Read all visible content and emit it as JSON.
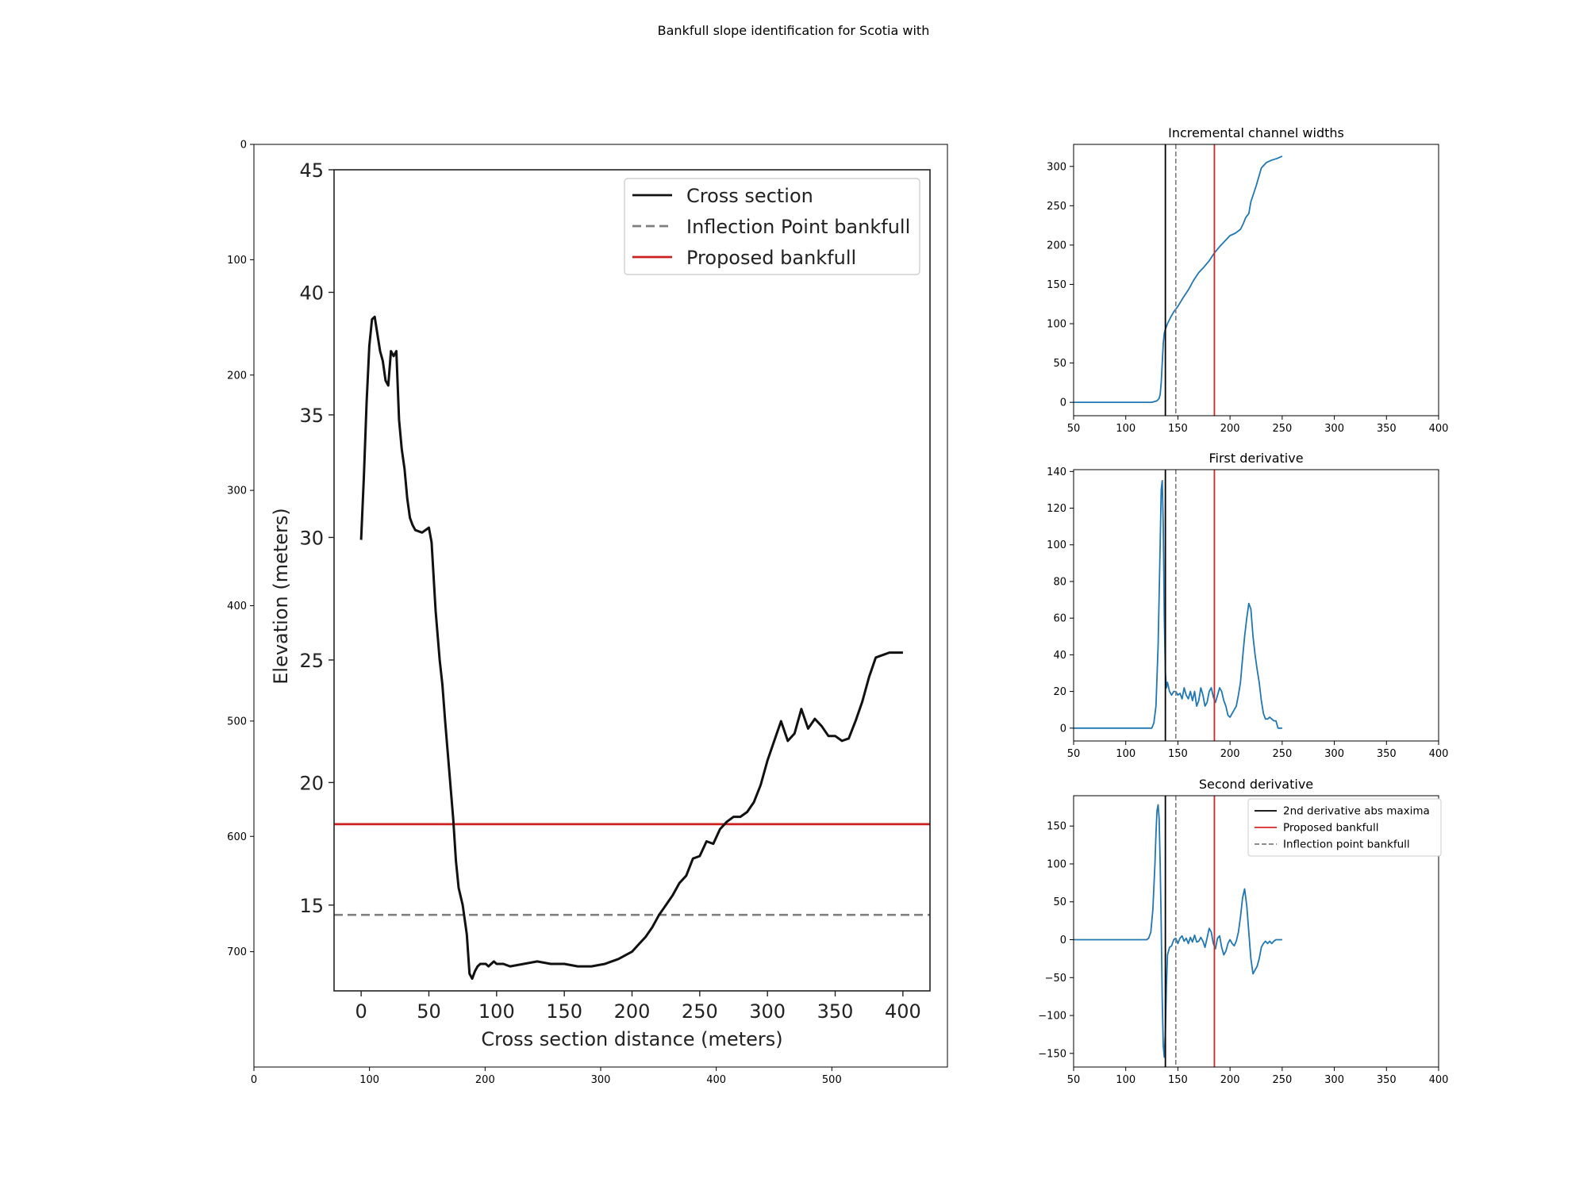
{
  "figure_title": "Bankfull slope identification for Scotia with",
  "colors": {
    "series": "#1f77b4",
    "black": "#000000",
    "red": "#d62728",
    "red_image": "#cc1f1f",
    "gray": "#7f7f7f"
  },
  "chart_data": [
    {
      "id": "image_panel",
      "type": "image",
      "x_ticks": [
        0,
        100,
        200,
        300,
        400,
        500
      ],
      "y_ticks": [
        0,
        100,
        200,
        300,
        400,
        500,
        600,
        700
      ],
      "xlim": [
        0,
        600
      ],
      "ylim": [
        800,
        0
      ],
      "embedded_chart": {
        "type": "line",
        "xlabel": "Cross section distance (meters)",
        "ylabel": "Elevation (meters)",
        "xlim": [
          -20,
          420
        ],
        "ylim": [
          11.5,
          45
        ],
        "x_ticks": [
          0,
          50,
          100,
          150,
          200,
          250,
          300,
          350,
          400
        ],
        "y_ticks": [
          15,
          20,
          25,
          30,
          35,
          40,
          45
        ],
        "legend": [
          "Cross section",
          "Inflection Point bankfull",
          "Proposed bankfull"
        ],
        "legend_position": "top-right",
        "proposed_bankfull_elevation": 18.3,
        "inflection_bankfull_elevation": 14.6,
        "cross_section": {
          "x": [
            0,
            2,
            4,
            6,
            8,
            10,
            12,
            14,
            16,
            18,
            20,
            22,
            24,
            26,
            28,
            30,
            32,
            34,
            36,
            38,
            40,
            45,
            50,
            52,
            55,
            58,
            60,
            62,
            65,
            68,
            70,
            72,
            75,
            78,
            80,
            82,
            84,
            86,
            88,
            90,
            92,
            94,
            96,
            98,
            100,
            105,
            110,
            120,
            130,
            140,
            150,
            160,
            170,
            180,
            190,
            200,
            205,
            210,
            215,
            220,
            225,
            230,
            235,
            240,
            245,
            250,
            255,
            260,
            265,
            270,
            275,
            280,
            285,
            290,
            295,
            300,
            305,
            310,
            315,
            320,
            325,
            330,
            335,
            340,
            345,
            350,
            355,
            360,
            365,
            370,
            375,
            380,
            385,
            390,
            395,
            400
          ],
          "y": [
            29.9,
            32.5,
            35.5,
            37.8,
            38.9,
            39.0,
            38.3,
            37.6,
            37.2,
            36.4,
            36.2,
            37.6,
            37.4,
            37.6,
            34.8,
            33.6,
            32.8,
            31.6,
            30.8,
            30.5,
            30.3,
            30.2,
            30.4,
            29.8,
            27.0,
            25.0,
            24.0,
            22.5,
            20.5,
            18.5,
            16.8,
            15.7,
            15.0,
            13.8,
            12.2,
            12.0,
            12.3,
            12.5,
            12.6,
            12.6,
            12.6,
            12.5,
            12.6,
            12.7,
            12.6,
            12.6,
            12.5,
            12.6,
            12.7,
            12.6,
            12.6,
            12.5,
            12.5,
            12.6,
            12.8,
            13.1,
            13.4,
            13.7,
            14.1,
            14.6,
            15.0,
            15.4,
            15.9,
            16.2,
            16.9,
            17.0,
            17.6,
            17.5,
            18.1,
            18.4,
            18.6,
            18.6,
            18.8,
            19.2,
            19.9,
            20.9,
            21.7,
            22.5,
            21.7,
            22.0,
            23.0,
            22.2,
            22.6,
            22.3,
            21.9,
            21.9,
            21.7,
            21.8,
            22.5,
            23.3,
            24.3,
            25.1,
            25.2,
            25.3,
            25.3,
            25.3
          ]
        }
      }
    },
    {
      "id": "widths",
      "type": "line",
      "title": "Incremental channel widths",
      "xlim": [
        50,
        400
      ],
      "ylim": [
        -17,
        328
      ],
      "x_ticks": [
        50,
        100,
        150,
        200,
        250,
        300,
        350,
        400
      ],
      "y_ticks": [
        0,
        50,
        100,
        150,
        200,
        250,
        300
      ],
      "vlines": {
        "black": 138,
        "gray_dashed": 148,
        "red": 185
      },
      "series": [
        {
          "x": [
            50,
            100,
            125,
            130,
            132,
            133,
            134,
            135,
            136,
            137,
            138,
            140,
            143,
            146,
            150,
            155,
            160,
            165,
            170,
            175,
            180,
            185,
            190,
            195,
            200,
            205,
            210,
            213,
            215,
            218,
            220,
            225,
            230,
            235,
            240,
            245,
            250
          ],
          "y": [
            0,
            0,
            0,
            2,
            5,
            10,
            25,
            50,
            75,
            88,
            93,
            100,
            108,
            115,
            122,
            133,
            143,
            155,
            165,
            172,
            180,
            190,
            198,
            205,
            212,
            215,
            220,
            228,
            235,
            240,
            255,
            275,
            298,
            305,
            308,
            310,
            313
          ]
        }
      ]
    },
    {
      "id": "first_derivative",
      "type": "line",
      "title": "First derivative",
      "xlim": [
        50,
        400
      ],
      "ylim": [
        -7,
        141
      ],
      "x_ticks": [
        50,
        100,
        150,
        200,
        250,
        300,
        350,
        400
      ],
      "y_ticks": [
        0,
        20,
        40,
        60,
        80,
        100,
        120,
        140
      ],
      "vlines": {
        "black": 138,
        "gray_dashed": 148,
        "red": 185
      },
      "series": [
        {
          "x": [
            50,
            100,
            125,
            127,
            129,
            131,
            133,
            134,
            135,
            136,
            137,
            138,
            139,
            140,
            142,
            144,
            146,
            148,
            150,
            152,
            154,
            156,
            158,
            160,
            162,
            164,
            166,
            168,
            170,
            172,
            174,
            176,
            178,
            180,
            182,
            184,
            186,
            188,
            190,
            192,
            194,
            196,
            198,
            200,
            202,
            204,
            206,
            208,
            210,
            212,
            214,
            216,
            218,
            220,
            222,
            224,
            226,
            228,
            230,
            232,
            234,
            236,
            238,
            240,
            242,
            244,
            246,
            248,
            250
          ],
          "y": [
            0,
            0,
            0,
            3,
            12,
            45,
            100,
            130,
            135,
            110,
            60,
            30,
            22,
            25,
            20,
            18,
            20,
            20,
            18,
            19,
            16,
            22,
            18,
            16,
            20,
            15,
            20,
            12,
            15,
            22,
            18,
            12,
            14,
            20,
            22,
            17,
            14,
            18,
            22,
            20,
            15,
            12,
            7,
            6,
            8,
            10,
            12,
            18,
            25,
            38,
            50,
            60,
            68,
            65,
            50,
            40,
            32,
            25,
            15,
            8,
            5,
            5,
            6,
            5,
            4,
            4,
            0,
            0,
            0
          ]
        }
      ]
    },
    {
      "id": "second_derivative",
      "type": "line",
      "title": "Second derivative",
      "xlim": [
        50,
        400
      ],
      "ylim": [
        -168,
        190
      ],
      "x_ticks": [
        50,
        100,
        150,
        200,
        250,
        300,
        350,
        400
      ],
      "y_ticks": [
        -150,
        -100,
        -50,
        0,
        50,
        100,
        150
      ],
      "vlines": {
        "black": 138,
        "gray_dashed": 148,
        "red": 185
      },
      "legend": [
        "2nd derivative abs maxima",
        "Proposed bankfull",
        "Inflection point bankfull"
      ],
      "legend_position": "top-right",
      "series": [
        {
          "x": [
            50,
            100,
            120,
            122,
            124,
            126,
            128,
            129,
            130,
            131,
            132,
            133,
            134,
            135,
            136,
            137,
            138,
            139,
            140,
            142,
            144,
            146,
            148,
            150,
            152,
            154,
            156,
            158,
            160,
            162,
            164,
            166,
            168,
            170,
            172,
            174,
            176,
            178,
            180,
            182,
            184,
            186,
            188,
            190,
            192,
            194,
            196,
            198,
            200,
            202,
            204,
            206,
            208,
            210,
            212,
            214,
            216,
            218,
            220,
            222,
            224,
            226,
            228,
            230,
            232,
            234,
            236,
            238,
            240,
            242,
            244,
            246,
            248,
            250
          ],
          "y": [
            0,
            0,
            0,
            2,
            10,
            40,
            100,
            140,
            170,
            178,
            160,
            100,
            20,
            -80,
            -140,
            -155,
            -120,
            -60,
            -20,
            -10,
            -8,
            0,
            2,
            -5,
            2,
            5,
            -2,
            2,
            -5,
            3,
            -3,
            6,
            -3,
            -2,
            3,
            -2,
            -10,
            2,
            15,
            10,
            -5,
            -12,
            2,
            5,
            -10,
            -20,
            -15,
            -5,
            0,
            -5,
            -8,
            -2,
            10,
            30,
            55,
            67,
            45,
            10,
            -25,
            -45,
            -40,
            -35,
            -25,
            -10,
            -5,
            -2,
            -5,
            -2,
            -5,
            -2,
            0,
            0,
            0,
            0
          ]
        }
      ]
    }
  ]
}
